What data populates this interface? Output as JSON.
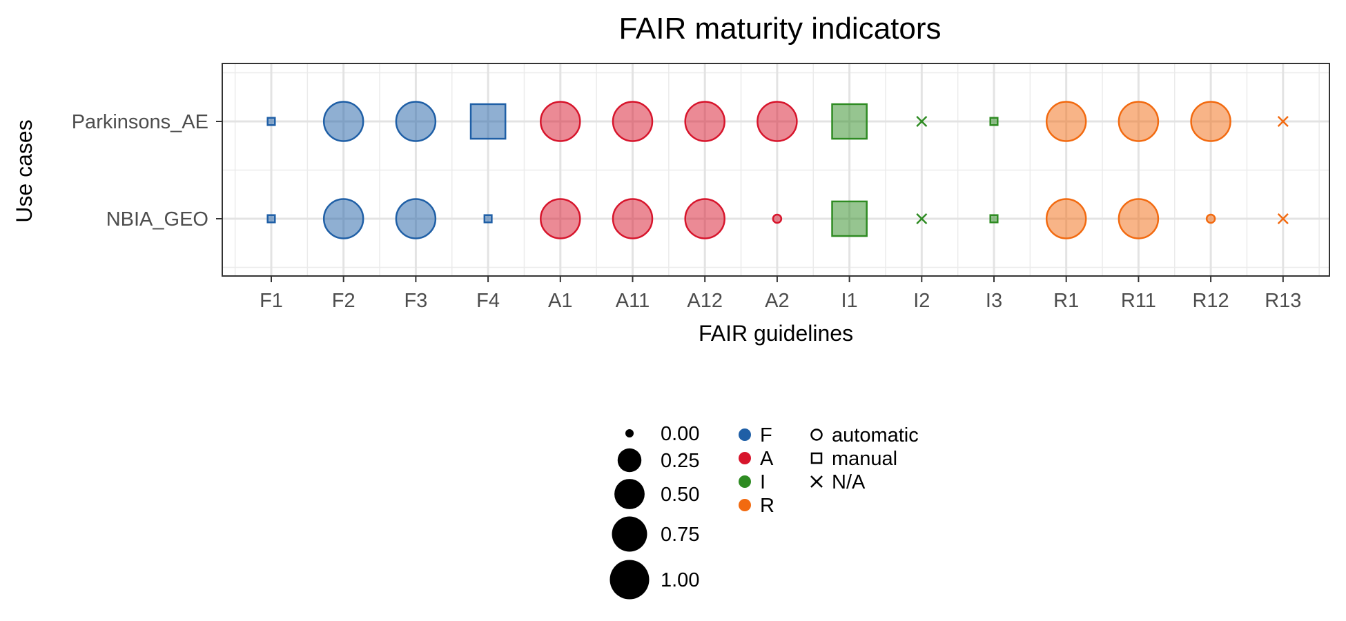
{
  "chart_data": {
    "type": "scatter",
    "title": "FAIR maturity indicators",
    "xlabel": "FAIR guidelines",
    "ylabel": "Use cases",
    "categories": [
      "F1",
      "F2",
      "F3",
      "F4",
      "A1",
      "A11",
      "A12",
      "A2",
      "I1",
      "I2",
      "I3",
      "R1",
      "R11",
      "R12",
      "R13"
    ],
    "rows": [
      "Parkinsons_AE",
      "NBIA_GEO"
    ],
    "grid": true,
    "groups": [
      {
        "name": "F",
        "color": "#1F5FA6"
      },
      {
        "name": "A",
        "color": "#D7152C"
      },
      {
        "name": "I",
        "color": "#2E8B22"
      },
      {
        "name": "R",
        "color": "#F26A10"
      }
    ],
    "points": [
      {
        "row": "Parkinsons_AE",
        "x": "F1",
        "group": "F",
        "method": "manual",
        "value": 0.0
      },
      {
        "row": "Parkinsons_AE",
        "x": "F2",
        "group": "F",
        "method": "automatic",
        "value": 1.0
      },
      {
        "row": "Parkinsons_AE",
        "x": "F3",
        "group": "F",
        "method": "automatic",
        "value": 1.0
      },
      {
        "row": "Parkinsons_AE",
        "x": "F4",
        "group": "F",
        "method": "manual",
        "value": 1.0
      },
      {
        "row": "Parkinsons_AE",
        "x": "A1",
        "group": "A",
        "method": "automatic",
        "value": 1.0
      },
      {
        "row": "Parkinsons_AE",
        "x": "A11",
        "group": "A",
        "method": "automatic",
        "value": 1.0
      },
      {
        "row": "Parkinsons_AE",
        "x": "A12",
        "group": "A",
        "method": "automatic",
        "value": 1.0
      },
      {
        "row": "Parkinsons_AE",
        "x": "A2",
        "group": "A",
        "method": "automatic",
        "value": 1.0
      },
      {
        "row": "Parkinsons_AE",
        "x": "I1",
        "group": "I",
        "method": "manual",
        "value": 1.0
      },
      {
        "row": "Parkinsons_AE",
        "x": "I2",
        "group": "I",
        "method": "N/A",
        "value": 0.0
      },
      {
        "row": "Parkinsons_AE",
        "x": "I3",
        "group": "I",
        "method": "manual",
        "value": 0.0
      },
      {
        "row": "Parkinsons_AE",
        "x": "R1",
        "group": "R",
        "method": "automatic",
        "value": 1.0
      },
      {
        "row": "Parkinsons_AE",
        "x": "R11",
        "group": "R",
        "method": "automatic",
        "value": 1.0
      },
      {
        "row": "Parkinsons_AE",
        "x": "R12",
        "group": "R",
        "method": "automatic",
        "value": 1.0
      },
      {
        "row": "Parkinsons_AE",
        "x": "R13",
        "group": "R",
        "method": "N/A",
        "value": 0.0
      },
      {
        "row": "NBIA_GEO",
        "x": "F1",
        "group": "F",
        "method": "manual",
        "value": 0.0
      },
      {
        "row": "NBIA_GEO",
        "x": "F2",
        "group": "F",
        "method": "automatic",
        "value": 1.0
      },
      {
        "row": "NBIA_GEO",
        "x": "F3",
        "group": "F",
        "method": "automatic",
        "value": 1.0
      },
      {
        "row": "NBIA_GEO",
        "x": "F4",
        "group": "F",
        "method": "manual",
        "value": 0.0
      },
      {
        "row": "NBIA_GEO",
        "x": "A1",
        "group": "A",
        "method": "automatic",
        "value": 1.0
      },
      {
        "row": "NBIA_GEO",
        "x": "A11",
        "group": "A",
        "method": "automatic",
        "value": 1.0
      },
      {
        "row": "NBIA_GEO",
        "x": "A12",
        "group": "A",
        "method": "automatic",
        "value": 1.0
      },
      {
        "row": "NBIA_GEO",
        "x": "A2",
        "group": "A",
        "method": "automatic",
        "value": 0.0
      },
      {
        "row": "NBIA_GEO",
        "x": "I1",
        "group": "I",
        "method": "manual",
        "value": 1.0
      },
      {
        "row": "NBIA_GEO",
        "x": "I2",
        "group": "I",
        "method": "N/A",
        "value": 0.0
      },
      {
        "row": "NBIA_GEO",
        "x": "I3",
        "group": "I",
        "method": "manual",
        "value": 0.0
      },
      {
        "row": "NBIA_GEO",
        "x": "R1",
        "group": "R",
        "method": "automatic",
        "value": 1.0
      },
      {
        "row": "NBIA_GEO",
        "x": "R11",
        "group": "R",
        "method": "automatic",
        "value": 1.0
      },
      {
        "row": "NBIA_GEO",
        "x": "R12",
        "group": "R",
        "method": "automatic",
        "value": 0.0
      },
      {
        "row": "NBIA_GEO",
        "x": "R13",
        "group": "R",
        "method": "N/A",
        "value": 0.0
      }
    ],
    "legend": {
      "placement": "bottom",
      "size_labels": [
        "0.00",
        "0.25",
        "0.50",
        "0.75",
        "1.00"
      ],
      "size_values": [
        0.0,
        0.25,
        0.5,
        0.75,
        1.0
      ],
      "color_labels": [
        "F",
        "A",
        "I",
        "R"
      ],
      "shape_labels": [
        "automatic",
        "manual",
        "N/A"
      ]
    }
  }
}
